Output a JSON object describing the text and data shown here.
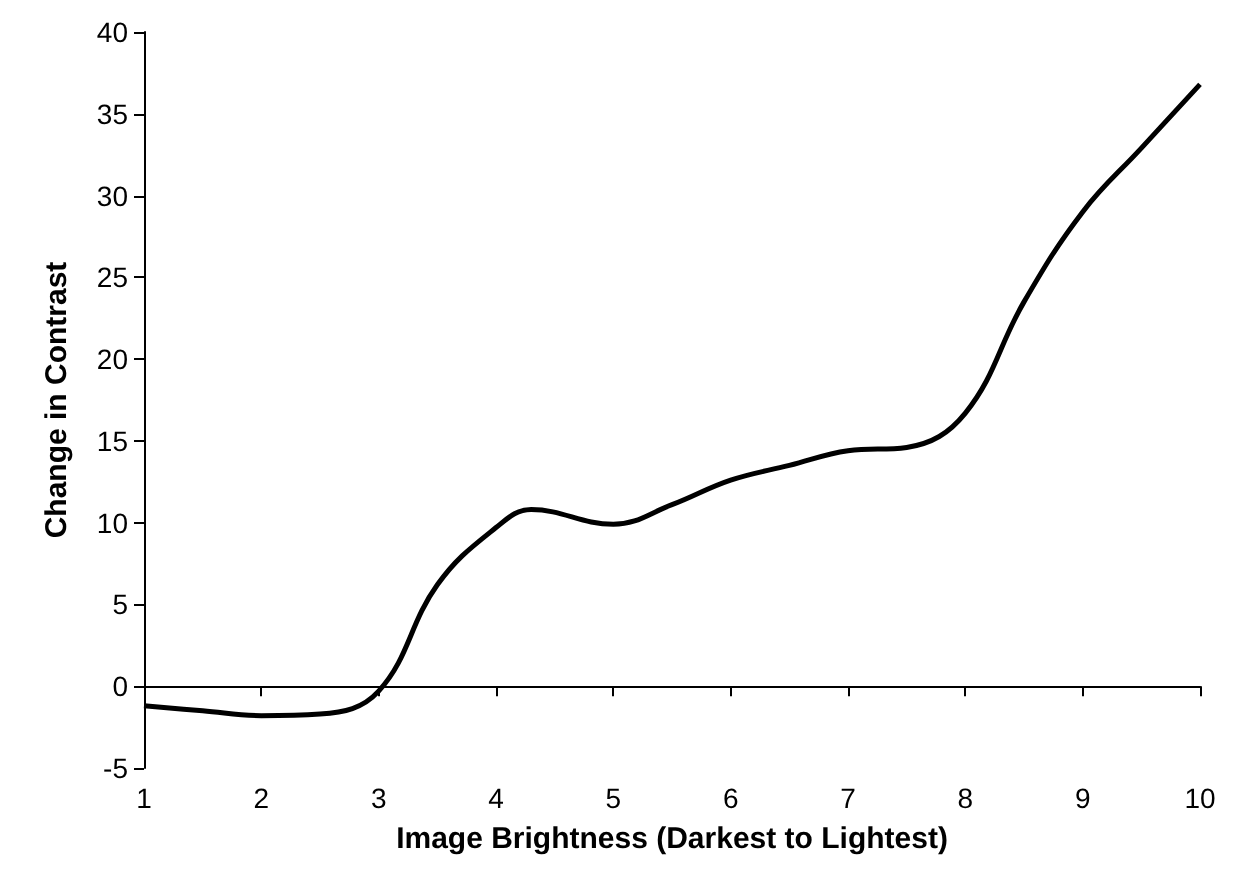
{
  "chart_data": {
    "type": "line",
    "xlabel": "Image Brightness (Darkest to Lightest)",
    "ylabel": "Change in Contrast",
    "x": [
      1,
      1.5,
      2,
      2.5,
      3,
      3.5,
      4,
      4.3,
      5,
      5.5,
      6,
      6.5,
      7,
      7.5,
      8,
      8.5,
      9,
      9.5,
      10
    ],
    "series": [
      {
        "color": "#000000",
        "values": [
          -1.2,
          -1.5,
          -1.8,
          -1.7,
          -0.3,
          6.2,
          9.7,
          10.8,
          9.9,
          11.1,
          12.6,
          13.5,
          14.4,
          14.6,
          16.7,
          23.5,
          29.0,
          32.9,
          36.8
        ]
      }
    ],
    "xlim": [
      1,
      10
    ],
    "xticks": [
      1,
      2,
      3,
      4,
      5,
      6,
      7,
      8,
      9,
      10
    ],
    "ylim": [
      -5,
      40
    ],
    "yticks": [
      -5,
      0,
      5,
      10,
      15,
      20,
      25,
      30,
      35,
      40
    ],
    "marker": "none",
    "line_style": "solid"
  }
}
